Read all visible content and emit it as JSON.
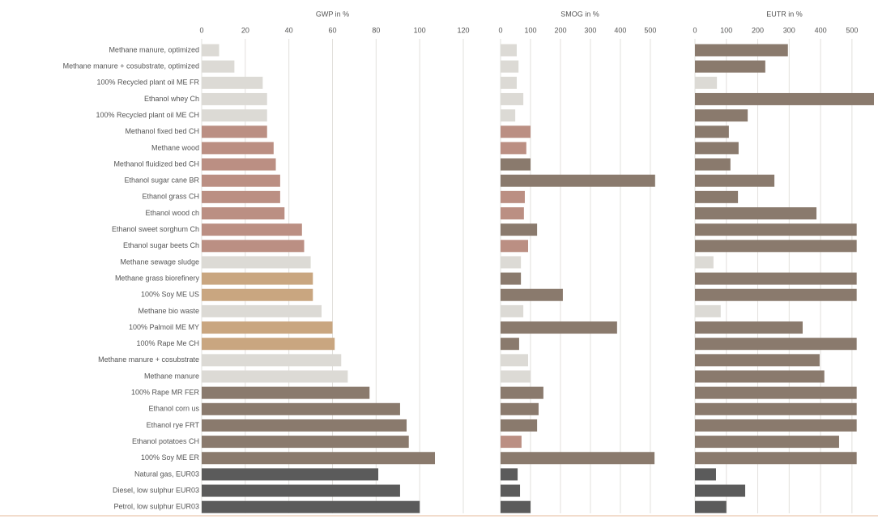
{
  "chart_data": [
    {
      "type": "barh",
      "title": "GWP in %",
      "categories": [
        "Methane manure, optimized",
        "Methane manure + cosubstrate, optimized",
        "100% Recycled plant oil ME FR",
        "Ethanol whey Ch",
        "100% Recycled plant oil ME CH",
        "Methanol fixed bed CH",
        "Methane wood",
        "Methanol fluidized bed CH",
        "Ethanol sugar cane BR",
        "Ethanol grass CH",
        "Ethanol wood ch",
        "Ethanol sweet sorghum Ch",
        "Ethanol sugar beets Ch",
        "Methane sewage sludge",
        "Methane grass biorefinery",
        "100% Soy ME US",
        "Methane bio waste",
        "100% Palmoil ME MY",
        "100% Rape Me CH",
        "Methane manure + cosubstrate",
        "Methane manure",
        "100% Rape MR FER",
        "Ethanol corn us",
        "Ethanol rye FRT",
        "Ethanol potatoes CH",
        "100% Soy ME ER",
        "Natural gas, EUR03",
        "Diesel, low sulphur EUR03",
        "Petrol, low sulphur EUR03"
      ],
      "values": [
        8,
        15,
        28,
        30,
        30,
        30,
        33,
        34,
        36,
        36,
        38,
        46,
        47,
        50,
        51,
        51,
        55,
        60,
        61,
        64,
        67,
        77,
        91,
        94,
        95,
        107,
        81,
        91,
        100
      ],
      "colors": [
        "#dcdad5",
        "#dcdad5",
        "#dcdad5",
        "#dcdad5",
        "#dcdad5",
        "#bb8f83",
        "#bb8f83",
        "#bb8f83",
        "#bb8f83",
        "#bb8f83",
        "#bb8f83",
        "#bb8f83",
        "#bb8f83",
        "#dcdad5",
        "#c9a680",
        "#c9a680",
        "#dcdad5",
        "#c9a680",
        "#c9a680",
        "#dcdad5",
        "#dcdad5",
        "#8a7a6d",
        "#8a7a6d",
        "#8a7a6d",
        "#8a7a6d",
        "#8a7a6d",
        "#5b5b5b",
        "#5b5b5b",
        "#5b5b5b"
      ],
      "xlim": [
        0,
        120
      ],
      "xticks": [
        0,
        20,
        40,
        60,
        80,
        100,
        120
      ],
      "grid": true
    },
    {
      "type": "barh",
      "title": "SMOG in %",
      "values": [
        54,
        60,
        54,
        76,
        49,
        100,
        86,
        100,
        516,
        81,
        78,
        122,
        92,
        68,
        68,
        208,
        76,
        389,
        62,
        92,
        100,
        143,
        127,
        122,
        70,
        514,
        57,
        65,
        100
      ],
      "colors": [
        "#dcdad5",
        "#dcdad5",
        "#dcdad5",
        "#dcdad5",
        "#dcdad5",
        "#bb8f83",
        "#bb8f83",
        "#8a7a6d",
        "#8a7a6d",
        "#bb8f83",
        "#bb8f83",
        "#8a7a6d",
        "#bb8f83",
        "#dcdad5",
        "#8a7a6d",
        "#8a7a6d",
        "#dcdad5",
        "#8a7a6d",
        "#8a7a6d",
        "#dcdad5",
        "#dcdad5",
        "#8a7a6d",
        "#8a7a6d",
        "#8a7a6d",
        "#bb8f83",
        "#8a7a6d",
        "#5b5b5b",
        "#5b5b5b",
        "#5b5b5b"
      ],
      "xlim": [
        0,
        530
      ],
      "xticks": [
        0,
        100,
        200,
        300,
        400,
        500
      ],
      "grid": true
    },
    {
      "type": "barh",
      "title": "EUTR in %",
      "values": [
        296,
        224,
        70,
        570,
        168,
        108,
        139,
        113,
        253,
        137,
        387,
        515,
        515,
        59,
        515,
        515,
        82,
        343,
        515,
        397,
        412,
        515,
        515,
        515,
        459,
        515,
        67,
        160,
        100
      ],
      "colors": [
        "#8a7a6d",
        "#8a7a6d",
        "#dcdad5",
        "#8a7a6d",
        "#8a7a6d",
        "#8a7a6d",
        "#8a7a6d",
        "#8a7a6d",
        "#8a7a6d",
        "#8a7a6d",
        "#8a7a6d",
        "#8a7a6d",
        "#8a7a6d",
        "#dcdad5",
        "#8a7a6d",
        "#8a7a6d",
        "#dcdad5",
        "#8a7a6d",
        "#8a7a6d",
        "#8a7a6d",
        "#8a7a6d",
        "#8a7a6d",
        "#8a7a6d",
        "#8a7a6d",
        "#8a7a6d",
        "#8a7a6d",
        "#5b5b5b",
        "#5b5b5b",
        "#5b5b5b"
      ],
      "xlim": [
        0,
        570
      ],
      "xticks": [
        0,
        100,
        200,
        300,
        400,
        500
      ],
      "grid": true
    }
  ]
}
